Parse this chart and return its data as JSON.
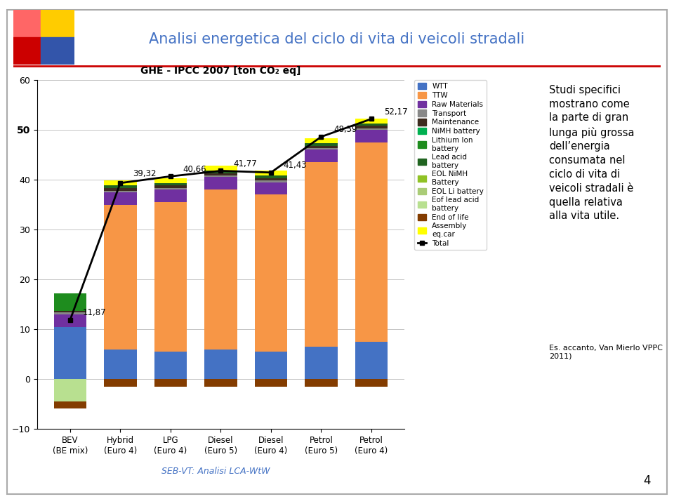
{
  "title": "GHE - IPCC 2007 [ton CO₂ eq]",
  "categories": [
    "BEV\n(BE mix)",
    "Hybrid\n(Euro 4)",
    "LPG\n(Euro 4)",
    "Diesel\n(Euro 5)",
    "Diesel\n(Euro 4)",
    "Petrol\n(Euro 5)",
    "Petrol\n(Euro 4)"
  ],
  "total_line": [
    11.87,
    39.32,
    40.66,
    41.77,
    41.43,
    48.59,
    52.17
  ],
  "total_labels": [
    "11,87",
    "39,32",
    "40,66",
    "41,77",
    "41,43",
    "48,59",
    "52,17"
  ],
  "ylim": [
    -10,
    60
  ],
  "yticks": [
    -10,
    0,
    10,
    20,
    30,
    40,
    50,
    60
  ],
  "segments": [
    {
      "label": "WTT",
      "color": "#4472C4",
      "values": [
        10.5,
        6.0,
        5.5,
        6.0,
        5.5,
        6.5,
        7.5
      ]
    },
    {
      "label": "TTW",
      "color": "#F79646",
      "values": [
        0.0,
        29.0,
        30.0,
        32.0,
        31.5,
        37.0,
        40.0
      ]
    },
    {
      "label": "Raw Materials",
      "color": "#7030A0",
      "values": [
        2.5,
        2.5,
        2.5,
        2.5,
        2.5,
        2.5,
        2.5
      ]
    },
    {
      "label": "Transport",
      "color": "#888888",
      "values": [
        0.4,
        0.3,
        0.3,
        0.3,
        0.3,
        0.3,
        0.3
      ]
    },
    {
      "label": "Maintenance",
      "color": "#3D2B1F",
      "values": [
        0.3,
        0.5,
        0.5,
        0.5,
        0.5,
        0.5,
        0.5
      ]
    },
    {
      "label": "NiMH battery",
      "color": "#00B050",
      "values": [
        0.0,
        0.0,
        0.0,
        0.0,
        0.0,
        0.0,
        0.0
      ]
    },
    {
      "label": "Lithium Ion\nbattery",
      "color": "#1E8C1E",
      "values": [
        3.5,
        0.0,
        0.0,
        0.0,
        0.0,
        0.0,
        0.0
      ]
    },
    {
      "label": "Lead acid\nbattery",
      "color": "#216421",
      "values": [
        0.0,
        0.5,
        0.5,
        0.5,
        0.5,
        0.5,
        0.5
      ]
    },
    {
      "label": "EOL NiMH\nBattery",
      "color": "#90C226",
      "values": [
        0.0,
        0.0,
        0.0,
        0.0,
        0.0,
        0.0,
        0.0
      ]
    },
    {
      "label": "EOL Li battery",
      "color": "#AACC77",
      "values": [
        0.0,
        0.0,
        0.0,
        0.0,
        0.0,
        0.0,
        0.0
      ]
    },
    {
      "label": "Eof lead acid\nbattery",
      "color": "#B8E090",
      "values": [
        -4.5,
        0.0,
        0.0,
        0.0,
        0.0,
        0.0,
        0.0
      ]
    },
    {
      "label": "End of life",
      "color": "#833C00",
      "values": [
        -1.3,
        -1.5,
        -1.5,
        -1.5,
        -1.5,
        -1.5,
        -1.5
      ]
    },
    {
      "label": "Assembly\neq.car",
      "color": "#FFFF00",
      "values": [
        0.0,
        1.0,
        1.0,
        1.0,
        1.0,
        1.0,
        1.0
      ]
    }
  ],
  "footer": "SEB-VT: Analisi LCA-WtW",
  "text_right": "Studi specifici\nmostrano come\nla parte di gran\nlunga più grossa\ndell’energia\nconsumata nel\nciclo di vita di\nveicoli stradali è\nquella relativa\nalla vita utile.",
  "text_right2": "Es. accanto, Van Mierlo VPPC\n2011)",
  "slide_title": "Analisi energetica del ciclo di vita di veicoli stradali",
  "page_number": "4",
  "background_color": "#F0F0F0",
  "chart_bg": "#FFFFFF",
  "slide_bg": "#FFFFFF"
}
